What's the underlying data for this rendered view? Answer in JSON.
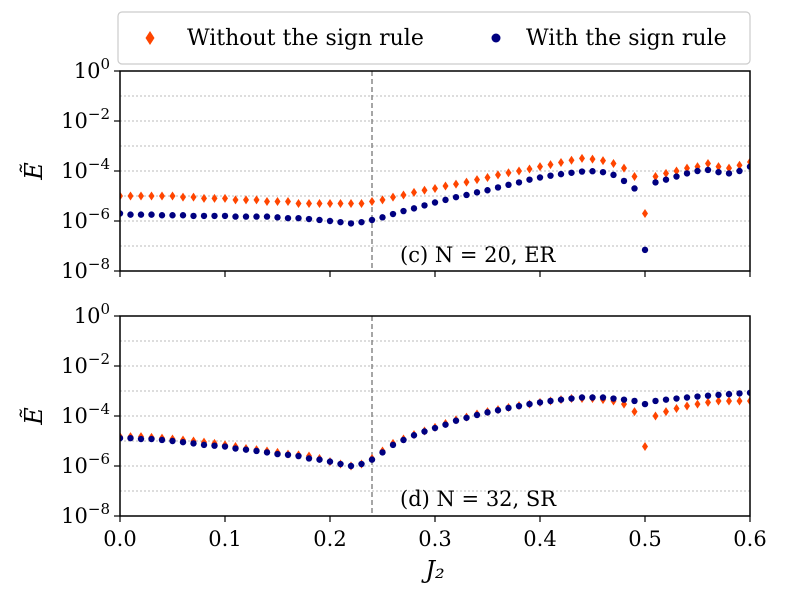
{
  "legend": {
    "without_label": "Without the sign rule",
    "with_label": "With the sign rule",
    "without_color": "#ff4500",
    "with_color": "#000080"
  },
  "xaxis": {
    "label": "J₂",
    "ticks": [
      0.0,
      0.1,
      0.2,
      0.3,
      0.4,
      0.5,
      0.6
    ],
    "tick_labels": [
      "0.0",
      "0.1",
      "0.2",
      "0.3",
      "0.4",
      "0.5",
      "0.6"
    ]
  },
  "chart_data": [
    {
      "type": "scatter",
      "panel": "c",
      "annotation": "(c) N = 20, ER",
      "ylabel": "Ẽ",
      "yscale": "log",
      "ylim": [
        1e-08,
        1
      ],
      "xlim": [
        0,
        0.6
      ],
      "yticks": [
        "10^0",
        "10^-2",
        "10^-4",
        "10^-6",
        "10^-8"
      ],
      "vline": 0.24,
      "grid": "horizontal-dotted",
      "series": [
        {
          "name": "Without the sign rule",
          "x": [
            0.0,
            0.01,
            0.02,
            0.03,
            0.04,
            0.05,
            0.06,
            0.07,
            0.08,
            0.09,
            0.1,
            0.11,
            0.12,
            0.13,
            0.14,
            0.15,
            0.16,
            0.17,
            0.18,
            0.19,
            0.2,
            0.21,
            0.22,
            0.23,
            0.24,
            0.25,
            0.26,
            0.27,
            0.28,
            0.29,
            0.3,
            0.31,
            0.32,
            0.33,
            0.34,
            0.35,
            0.36,
            0.37,
            0.38,
            0.39,
            0.4,
            0.41,
            0.42,
            0.43,
            0.44,
            0.45,
            0.46,
            0.47,
            0.48,
            0.49,
            0.5,
            0.51,
            0.52,
            0.53,
            0.54,
            0.55,
            0.56,
            0.57,
            0.58,
            0.59,
            0.6
          ],
          "y": [
            1e-05,
            1e-05,
            1e-05,
            1e-05,
            1e-05,
            1e-05,
            9e-06,
            9e-06,
            8e-06,
            8e-06,
            8e-06,
            7e-06,
            7e-06,
            7e-06,
            6e-06,
            6e-06,
            6e-06,
            5e-06,
            5e-06,
            5e-06,
            5e-06,
            5e-06,
            5e-06,
            5e-06,
            6e-06,
            7e-06,
            9e-06,
            1.1e-05,
            1.4e-05,
            1.7e-05,
            2e-05,
            2.5e-05,
            3e-05,
            3.6e-05,
            4.5e-05,
            5.5e-05,
            7e-05,
            8.5e-05,
            0.0001,
            0.00012,
            0.00015,
            0.00018,
            0.00022,
            0.00027,
            0.00032,
            0.0003,
            0.00026,
            0.0002,
            0.00013,
            6e-05,
            2e-06,
            6e-05,
            8e-05,
            0.0001,
            0.00013,
            0.00015,
            0.0002,
            0.00015,
            0.00013,
            0.00017,
            0.00023
          ]
        },
        {
          "name": "With the sign rule",
          "x": [
            0.0,
            0.01,
            0.02,
            0.03,
            0.04,
            0.05,
            0.06,
            0.07,
            0.08,
            0.09,
            0.1,
            0.11,
            0.12,
            0.13,
            0.14,
            0.15,
            0.16,
            0.17,
            0.18,
            0.19,
            0.2,
            0.21,
            0.22,
            0.23,
            0.24,
            0.25,
            0.26,
            0.27,
            0.28,
            0.29,
            0.3,
            0.31,
            0.32,
            0.33,
            0.34,
            0.35,
            0.36,
            0.37,
            0.38,
            0.39,
            0.4,
            0.41,
            0.42,
            0.43,
            0.44,
            0.45,
            0.46,
            0.47,
            0.48,
            0.49,
            0.5,
            0.51,
            0.52,
            0.53,
            0.54,
            0.55,
            0.56,
            0.57,
            0.58,
            0.59,
            0.6
          ],
          "y": [
            2e-06,
            1.8e-06,
            1.8e-06,
            1.8e-06,
            1.7e-06,
            1.7e-06,
            1.7e-06,
            1.6e-06,
            1.6e-06,
            1.6e-06,
            1.6e-06,
            1.5e-06,
            1.5e-06,
            1.5e-06,
            1.5e-06,
            1.4e-06,
            1.3e-06,
            1.3e-06,
            1.2e-06,
            1.1e-06,
            1e-06,
            9e-07,
            8e-07,
            9e-07,
            1.1e-06,
            1.4e-06,
            1.9e-06,
            2.5e-06,
            3.2e-06,
            4.2e-06,
            5.5e-06,
            7e-06,
            9e-06,
            1.1e-05,
            1.4e-05,
            1.7e-05,
            2.2e-05,
            2.8e-05,
            3.5e-05,
            4.5e-05,
            5.5e-05,
            6.5e-05,
            7.5e-05,
            8.5e-05,
            9.5e-05,
            9.8e-05,
            9e-05,
            7e-05,
            4e-05,
            2e-05,
            7e-08,
            3.5e-05,
            4.5e-05,
            6e-05,
            8e-05,
            0.0001,
            0.00011,
            9e-05,
            8e-05,
            0.0001,
            0.00015
          ]
        }
      ]
    },
    {
      "type": "scatter",
      "panel": "d",
      "annotation": "(d) N = 32, SR",
      "ylabel": "Ẽ",
      "yscale": "log",
      "ylim": [
        1e-08,
        1
      ],
      "xlim": [
        0,
        0.6
      ],
      "yticks": [
        "10^0",
        "10^-2",
        "10^-4",
        "10^-6",
        "10^-8"
      ],
      "vline": 0.24,
      "grid": "horizontal-dotted",
      "series": [
        {
          "name": "Without the sign rule",
          "x": [
            0.0,
            0.01,
            0.02,
            0.03,
            0.04,
            0.05,
            0.06,
            0.07,
            0.08,
            0.09,
            0.1,
            0.11,
            0.12,
            0.13,
            0.14,
            0.15,
            0.16,
            0.17,
            0.18,
            0.19,
            0.2,
            0.21,
            0.22,
            0.23,
            0.24,
            0.25,
            0.26,
            0.27,
            0.28,
            0.29,
            0.3,
            0.31,
            0.32,
            0.33,
            0.34,
            0.35,
            0.36,
            0.37,
            0.38,
            0.39,
            0.4,
            0.41,
            0.42,
            0.43,
            0.44,
            0.45,
            0.46,
            0.47,
            0.48,
            0.49,
            0.5,
            0.51,
            0.52,
            0.53,
            0.54,
            0.55,
            0.56,
            0.57,
            0.58,
            0.59,
            0.6
          ],
          "y": [
            1.5e-05,
            1.5e-05,
            1.5e-05,
            1.4e-05,
            1.3e-05,
            1.2e-05,
            1.1e-05,
            1e-05,
            9e-06,
            8e-06,
            7e-06,
            6e-06,
            5e-06,
            4.5e-06,
            4e-06,
            3.5e-06,
            3e-06,
            2.8e-06,
            2.5e-06,
            2e-06,
            1.5e-06,
            1.2e-06,
            1e-06,
            1.2e-06,
            2e-06,
            4e-06,
            8e-06,
            1.2e-05,
            1.8e-05,
            2.5e-05,
            3.5e-05,
            5e-05,
            7e-05,
            9e-05,
            0.00012,
            0.00015,
            0.00018,
            0.00022,
            0.00026,
            0.0003,
            0.00035,
            0.0004,
            0.00045,
            0.0005,
            0.0005,
            0.0005,
            0.00045,
            0.0004,
            0.0003,
            0.00015,
            6e-06,
            0.0001,
            0.00015,
            0.0002,
            0.00025,
            0.0003,
            0.00035,
            0.0004,
            0.0004,
            0.0004,
            0.0004
          ]
        },
        {
          "name": "With the sign rule",
          "x": [
            0.0,
            0.01,
            0.02,
            0.03,
            0.04,
            0.05,
            0.06,
            0.07,
            0.08,
            0.09,
            0.1,
            0.11,
            0.12,
            0.13,
            0.14,
            0.15,
            0.16,
            0.17,
            0.18,
            0.19,
            0.2,
            0.21,
            0.22,
            0.23,
            0.24,
            0.25,
            0.26,
            0.27,
            0.28,
            0.29,
            0.3,
            0.31,
            0.32,
            0.33,
            0.34,
            0.35,
            0.36,
            0.37,
            0.38,
            0.39,
            0.4,
            0.41,
            0.42,
            0.43,
            0.44,
            0.45,
            0.46,
            0.47,
            0.48,
            0.49,
            0.5,
            0.51,
            0.52,
            0.53,
            0.54,
            0.55,
            0.56,
            0.57,
            0.58,
            0.59,
            0.6
          ],
          "y": [
            1.3e-05,
            1.3e-05,
            1.2e-05,
            1.2e-05,
            1.1e-05,
            1e-05,
            9e-06,
            8e-06,
            7e-06,
            6.5e-06,
            6e-06,
            5e-06,
            4.5e-06,
            4e-06,
            3.5e-06,
            3e-06,
            2.8e-06,
            2.5e-06,
            2e-06,
            1.8e-06,
            1.5e-06,
            1.2e-06,
            1e-06,
            1.2e-06,
            1.8e-06,
            3.5e-06,
            7e-06,
            1.1e-05,
            1.7e-05,
            2.4e-05,
            3.3e-05,
            4.5e-05,
            6.5e-05,
            8.5e-05,
            0.00011,
            0.00014,
            0.00017,
            0.00021,
            0.00025,
            0.0003,
            0.00035,
            0.0004,
            0.00045,
            0.0005,
            0.00055,
            0.00055,
            0.00055,
            0.0005,
            0.00045,
            0.0004,
            0.0003,
            0.0004,
            0.00045,
            0.0005,
            0.00055,
            0.0006,
            0.00065,
            0.0007,
            0.00075,
            0.0008,
            0.00085
          ]
        }
      ]
    }
  ]
}
